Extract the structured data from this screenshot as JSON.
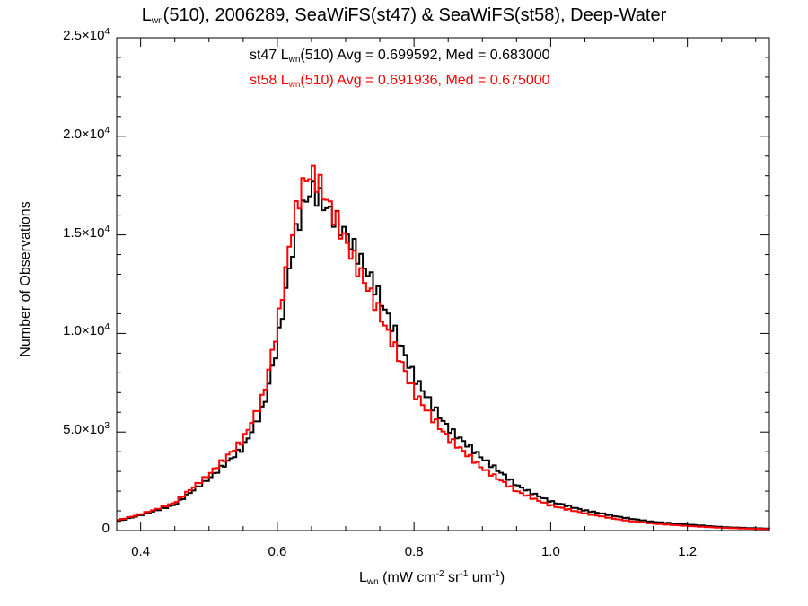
{
  "chart_data": {
    "type": "histogram-step",
    "title": {
      "prefix": "L",
      "sub": "wn",
      "rest": "(510), 2006289, SeaWiFS(st47) & SeaWiFS(st58), Deep-Water"
    },
    "xlabel": {
      "main": "L",
      "sub": "wn",
      "u1": " (mW cm",
      "e1": "-2",
      "u2": " sr",
      "e2": "-1",
      "u3": " um",
      "e3": "-1",
      "u4": ")"
    },
    "ylabel": "Number of Observations",
    "xlim": [
      0.365,
      1.32
    ],
    "ylim": [
      0,
      25000
    ],
    "xticks": [
      "0.4",
      "0.6",
      "0.8",
      "1.0",
      "1.2"
    ],
    "yticks": [
      {
        "value": 0,
        "mant": "0",
        "exp": ""
      },
      {
        "value": 5000,
        "mant": "5.0×10",
        "exp": "3"
      },
      {
        "value": 10000,
        "mant": "1.0×10",
        "exp": "4"
      },
      {
        "value": 15000,
        "mant": "1.5×10",
        "exp": "4"
      },
      {
        "value": 20000,
        "mant": "2.0×10",
        "exp": "4"
      },
      {
        "value": 25000,
        "mant": "2.5×10",
        "exp": "4"
      }
    ],
    "bin_width": 0.005,
    "series": [
      {
        "name": "st47",
        "color": "#000000",
        "stat": {
          "pre": "st47 L",
          "sub": "wn",
          "post": "(510) Avg = 0.699592, Med = 0.683000"
        },
        "x": [
          0.37,
          0.4,
          0.45,
          0.5,
          0.55,
          0.58,
          0.6,
          0.62,
          0.63,
          0.64,
          0.65,
          0.66,
          0.67,
          0.68,
          0.7,
          0.72,
          0.74,
          0.76,
          0.78,
          0.8,
          0.85,
          0.9,
          0.95,
          1.0,
          1.05,
          1.1,
          1.15,
          1.2,
          1.25,
          1.3,
          1.32
        ],
        "y": [
          500,
          800,
          1300,
          2600,
          4300,
          6300,
          9300,
          13500,
          15200,
          16400,
          17200,
          17000,
          16600,
          16300,
          15400,
          14000,
          12500,
          10800,
          9300,
          7800,
          5300,
          3600,
          2300,
          1500,
          1000,
          700,
          450,
          300,
          180,
          120,
          100
        ]
      },
      {
        "name": "st58",
        "color": "#ff0000",
        "stat": {
          "pre": "st58 L",
          "sub": "wn",
          "post": "(510) Avg = 0.691936, Med = 0.675000"
        },
        "x": [
          0.37,
          0.4,
          0.45,
          0.5,
          0.55,
          0.58,
          0.6,
          0.62,
          0.63,
          0.64,
          0.65,
          0.66,
          0.67,
          0.68,
          0.7,
          0.72,
          0.74,
          0.76,
          0.78,
          0.8,
          0.85,
          0.9,
          0.95,
          1.0,
          1.05,
          1.1,
          1.15,
          1.2,
          1.25,
          1.3,
          1.32
        ],
        "y": [
          550,
          850,
          1400,
          2800,
          4700,
          6900,
          10200,
          14600,
          16300,
          17500,
          18000,
          17700,
          17100,
          16500,
          15000,
          13300,
          11700,
          10000,
          8500,
          7000,
          4800,
          3100,
          2000,
          1300,
          850,
          560,
          360,
          230,
          140,
          90,
          80
        ]
      }
    ]
  }
}
